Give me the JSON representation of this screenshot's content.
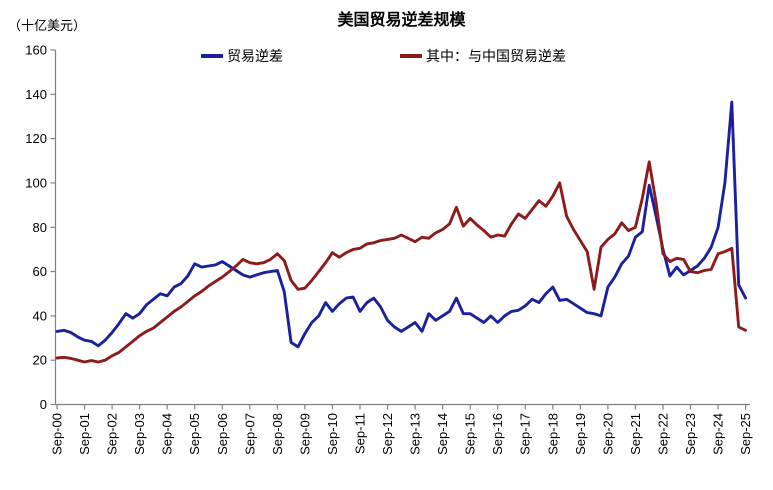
{
  "header": {
    "title": "美国贸易逆差规模",
    "unit_label": "（十亿美元）"
  },
  "legend": [
    {
      "label": "贸易逆差",
      "color": "#1b219c"
    },
    {
      "label": "其中：与中国贸易逆差",
      "color": "#8e1b1b"
    }
  ],
  "chart_data": {
    "type": "line",
    "title": "美国贸易逆差规模",
    "unit": "十亿美元",
    "grid": false,
    "legend_position": "top",
    "axis_color": "#808080",
    "text_color": "#000000",
    "ylim": [
      0,
      160
    ],
    "y_ticks": [
      0,
      20,
      40,
      60,
      80,
      100,
      120,
      140,
      160
    ],
    "x_frequency": "quarterly",
    "x_tick_labels": [
      "Sep-00",
      "Sep-01",
      "Sep-02",
      "Sep-03",
      "Sep-04",
      "Sep-05",
      "Sep-06",
      "Sep-07",
      "Sep-08",
      "Sep-09",
      "Sep-10",
      "Sep-11",
      "Sep-12",
      "Sep-13",
      "Sep-14",
      "Sep-15",
      "Sep-16",
      "Sep-17",
      "Sep-18",
      "Sep-19",
      "Sep-20",
      "Sep-21",
      "Sep-22",
      "Sep-23",
      "Sep-24",
      "Sep-25"
    ],
    "quarters_per_tick": 4,
    "series": [
      {
        "name": "贸易逆差",
        "color": "#1b219c",
        "values": [
          33,
          33.5,
          32.5,
          30.5,
          29,
          28.5,
          26.5,
          29,
          32.5,
          36.5,
          41,
          39,
          41,
          45,
          47.5,
          50,
          49,
          53,
          54.5,
          58,
          63.5,
          62,
          62.5,
          63,
          64.5,
          62.5,
          60.5,
          58.5,
          57.5,
          58.5,
          59.5,
          60,
          60.5,
          51,
          28,
          26,
          32,
          37,
          40,
          46,
          42,
          45.5,
          48,
          48.5,
          42,
          46,
          48,
          44,
          38,
          35,
          33,
          35,
          37,
          33,
          41,
          38,
          40,
          42,
          48,
          41,
          41,
          39,
          37,
          40,
          37,
          40,
          42,
          42.5,
          44.5,
          47.5,
          46,
          50,
          53,
          47,
          47.5,
          45.5,
          43.5,
          41.5,
          41,
          40,
          53,
          57.5,
          63.5,
          67,
          75.5,
          78,
          99,
          85,
          70,
          58,
          62,
          58.5,
          60.5,
          62.5,
          66,
          71,
          80,
          100,
          136.5,
          54,
          48
        ]
      },
      {
        "name": "其中：与中国贸易逆差",
        "color": "#8e1b1b",
        "values": [
          21,
          21.3,
          20.8,
          20,
          19.2,
          19.8,
          19.2,
          20,
          22,
          23.5,
          26,
          28.5,
          31,
          33,
          34.5,
          37,
          39.5,
          42,
          44,
          46.5,
          49,
          51,
          53.5,
          55.5,
          57.5,
          60,
          62.5,
          65.5,
          64,
          63.5,
          64,
          65.5,
          68,
          65,
          56,
          52,
          52.5,
          56,
          60,
          64,
          68.5,
          66.5,
          68.5,
          70,
          70.5,
          72.5,
          73,
          74,
          74.5,
          75,
          76.5,
          75,
          73.5,
          75.5,
          75,
          77.5,
          79,
          81.5,
          89,
          80.5,
          84,
          81,
          78.5,
          75.5,
          76.5,
          76,
          81.5,
          86,
          84,
          88,
          92,
          89.5,
          94,
          100,
          85,
          79,
          74,
          69,
          52,
          71,
          74.5,
          77,
          82,
          78.5,
          80,
          93,
          109.5,
          91,
          68,
          64.5,
          66,
          65.5,
          60,
          59.5,
          60.5,
          61,
          68,
          69,
          70.5,
          35,
          33.5
        ]
      }
    ]
  }
}
